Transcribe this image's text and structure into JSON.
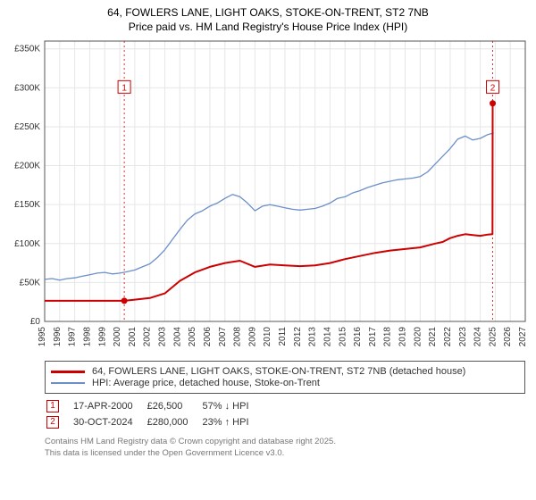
{
  "title": {
    "line1": "64, FOWLERS LANE, LIGHT OAKS, STOKE-ON-TRENT, ST2 7NB",
    "line2": "Price paid vs. HM Land Registry's House Price Index (HPI)"
  },
  "chart": {
    "type": "line",
    "background_color": "#ffffff",
    "plot_border_color": "#555555",
    "grid_color": "#e6e6e6",
    "axis_font_size": 10,
    "x": {
      "min": 1995,
      "max": 2027,
      "ticks": [
        1995,
        1996,
        1997,
        1998,
        1999,
        2000,
        2001,
        2002,
        2003,
        2004,
        2005,
        2006,
        2007,
        2008,
        2009,
        2010,
        2011,
        2012,
        2013,
        2014,
        2015,
        2016,
        2017,
        2018,
        2019,
        2020,
        2021,
        2022,
        2023,
        2024,
        2025,
        2026,
        2027
      ]
    },
    "y": {
      "min": 0,
      "max": 360000,
      "ticks": [
        0,
        50000,
        100000,
        150000,
        200000,
        250000,
        300000,
        350000
      ],
      "tick_labels": [
        "£0",
        "£50K",
        "£100K",
        "£150K",
        "£200K",
        "£250K",
        "£300K",
        "£350K"
      ]
    },
    "series": [
      {
        "id": "price",
        "label": "64, FOWLERS LANE, LIGHT OAKS, STOKE-ON-TRENT, ST2 7NB (detached house)",
        "color": "#cc0000",
        "line_width": 2,
        "points": [
          [
            1995.0,
            26500
          ],
          [
            1996.0,
            26500
          ],
          [
            1997.0,
            26500
          ],
          [
            1998.0,
            26500
          ],
          [
            1999.0,
            26500
          ],
          [
            2000.3,
            26500
          ],
          [
            2001.0,
            28000
          ],
          [
            2002.0,
            30000
          ],
          [
            2003.0,
            36000
          ],
          [
            2004.0,
            52000
          ],
          [
            2005.0,
            63000
          ],
          [
            2006.0,
            70000
          ],
          [
            2007.0,
            75000
          ],
          [
            2008.0,
            78000
          ],
          [
            2009.0,
            70000
          ],
          [
            2010.0,
            73000
          ],
          [
            2011.0,
            72000
          ],
          [
            2012.0,
            71000
          ],
          [
            2013.0,
            72000
          ],
          [
            2014.0,
            75000
          ],
          [
            2015.0,
            80000
          ],
          [
            2016.0,
            84000
          ],
          [
            2017.0,
            88000
          ],
          [
            2018.0,
            91000
          ],
          [
            2019.0,
            93000
          ],
          [
            2020.0,
            95000
          ],
          [
            2021.0,
            100000
          ],
          [
            2021.5,
            102000
          ],
          [
            2022.0,
            107000
          ],
          [
            2022.5,
            110000
          ],
          [
            2023.0,
            112000
          ],
          [
            2023.5,
            111000
          ],
          [
            2024.0,
            110000
          ],
          [
            2024.5,
            111500
          ],
          [
            2024.82,
            112000
          ],
          [
            2024.83,
            280000
          ]
        ]
      },
      {
        "id": "hpi",
        "label": "HPI: Average price, detached house, Stoke-on-Trent",
        "color": "#6b8fc9",
        "line_width": 1.3,
        "points": [
          [
            1995.0,
            54000
          ],
          [
            1995.5,
            55000
          ],
          [
            1996.0,
            53000
          ],
          [
            1996.5,
            55000
          ],
          [
            1997.0,
            56000
          ],
          [
            1997.5,
            58000
          ],
          [
            1998.0,
            60000
          ],
          [
            1998.5,
            62000
          ],
          [
            1999.0,
            63000
          ],
          [
            1999.5,
            61000
          ],
          [
            2000.0,
            62000
          ],
          [
            2000.5,
            64000
          ],
          [
            2001.0,
            66000
          ],
          [
            2001.5,
            70000
          ],
          [
            2002.0,
            74000
          ],
          [
            2002.5,
            82000
          ],
          [
            2003.0,
            92000
          ],
          [
            2003.5,
            105000
          ],
          [
            2004.0,
            118000
          ],
          [
            2004.5,
            130000
          ],
          [
            2005.0,
            138000
          ],
          [
            2005.5,
            142000
          ],
          [
            2006.0,
            148000
          ],
          [
            2006.5,
            152000
          ],
          [
            2007.0,
            158000
          ],
          [
            2007.5,
            163000
          ],
          [
            2008.0,
            160000
          ],
          [
            2008.5,
            152000
          ],
          [
            2009.0,
            142000
          ],
          [
            2009.5,
            148000
          ],
          [
            2010.0,
            150000
          ],
          [
            2010.5,
            148000
          ],
          [
            2011.0,
            146000
          ],
          [
            2011.5,
            144000
          ],
          [
            2012.0,
            143000
          ],
          [
            2012.5,
            144000
          ],
          [
            2013.0,
            145000
          ],
          [
            2013.5,
            148000
          ],
          [
            2014.0,
            152000
          ],
          [
            2014.5,
            158000
          ],
          [
            2015.0,
            160000
          ],
          [
            2015.5,
            165000
          ],
          [
            2016.0,
            168000
          ],
          [
            2016.5,
            172000
          ],
          [
            2017.0,
            175000
          ],
          [
            2017.5,
            178000
          ],
          [
            2018.0,
            180000
          ],
          [
            2018.5,
            182000
          ],
          [
            2019.0,
            183000
          ],
          [
            2019.5,
            184000
          ],
          [
            2020.0,
            186000
          ],
          [
            2020.5,
            192000
          ],
          [
            2021.0,
            202000
          ],
          [
            2021.5,
            212000
          ],
          [
            2022.0,
            222000
          ],
          [
            2022.5,
            234000
          ],
          [
            2023.0,
            238000
          ],
          [
            2023.5,
            233000
          ],
          [
            2024.0,
            235000
          ],
          [
            2024.5,
            240000
          ],
          [
            2024.9,
            242000
          ]
        ]
      }
    ],
    "markers": [
      {
        "num": "1",
        "year": 2000.3,
        "label_y": 300000,
        "color": "#cc0000",
        "dot_at": 26500
      },
      {
        "num": "2",
        "year": 2024.83,
        "label_y": 300000,
        "color": "#cc0000",
        "dot_at": 280000
      }
    ]
  },
  "legend": {
    "series1": "64, FOWLERS LANE, LIGHT OAKS, STOKE-ON-TRENT, ST2 7NB (detached house)",
    "series2": "HPI: Average price, detached house, Stoke-on-Trent",
    "series1_color": "#cc0000",
    "series2_color": "#6b8fc9"
  },
  "transactions": [
    {
      "num": "1",
      "date": "17-APR-2000",
      "price": "£26,500",
      "pct": "57%",
      "dir": "↓",
      "vs": "HPI",
      "color": "#cc0000"
    },
    {
      "num": "2",
      "date": "30-OCT-2024",
      "price": "£280,000",
      "pct": "23%",
      "dir": "↑",
      "vs": "HPI",
      "color": "#cc0000"
    }
  ],
  "footer": {
    "line1": "Contains HM Land Registry data © Crown copyright and database right 2025.",
    "line2": "This data is licensed under the Open Government Licence v3.0."
  }
}
